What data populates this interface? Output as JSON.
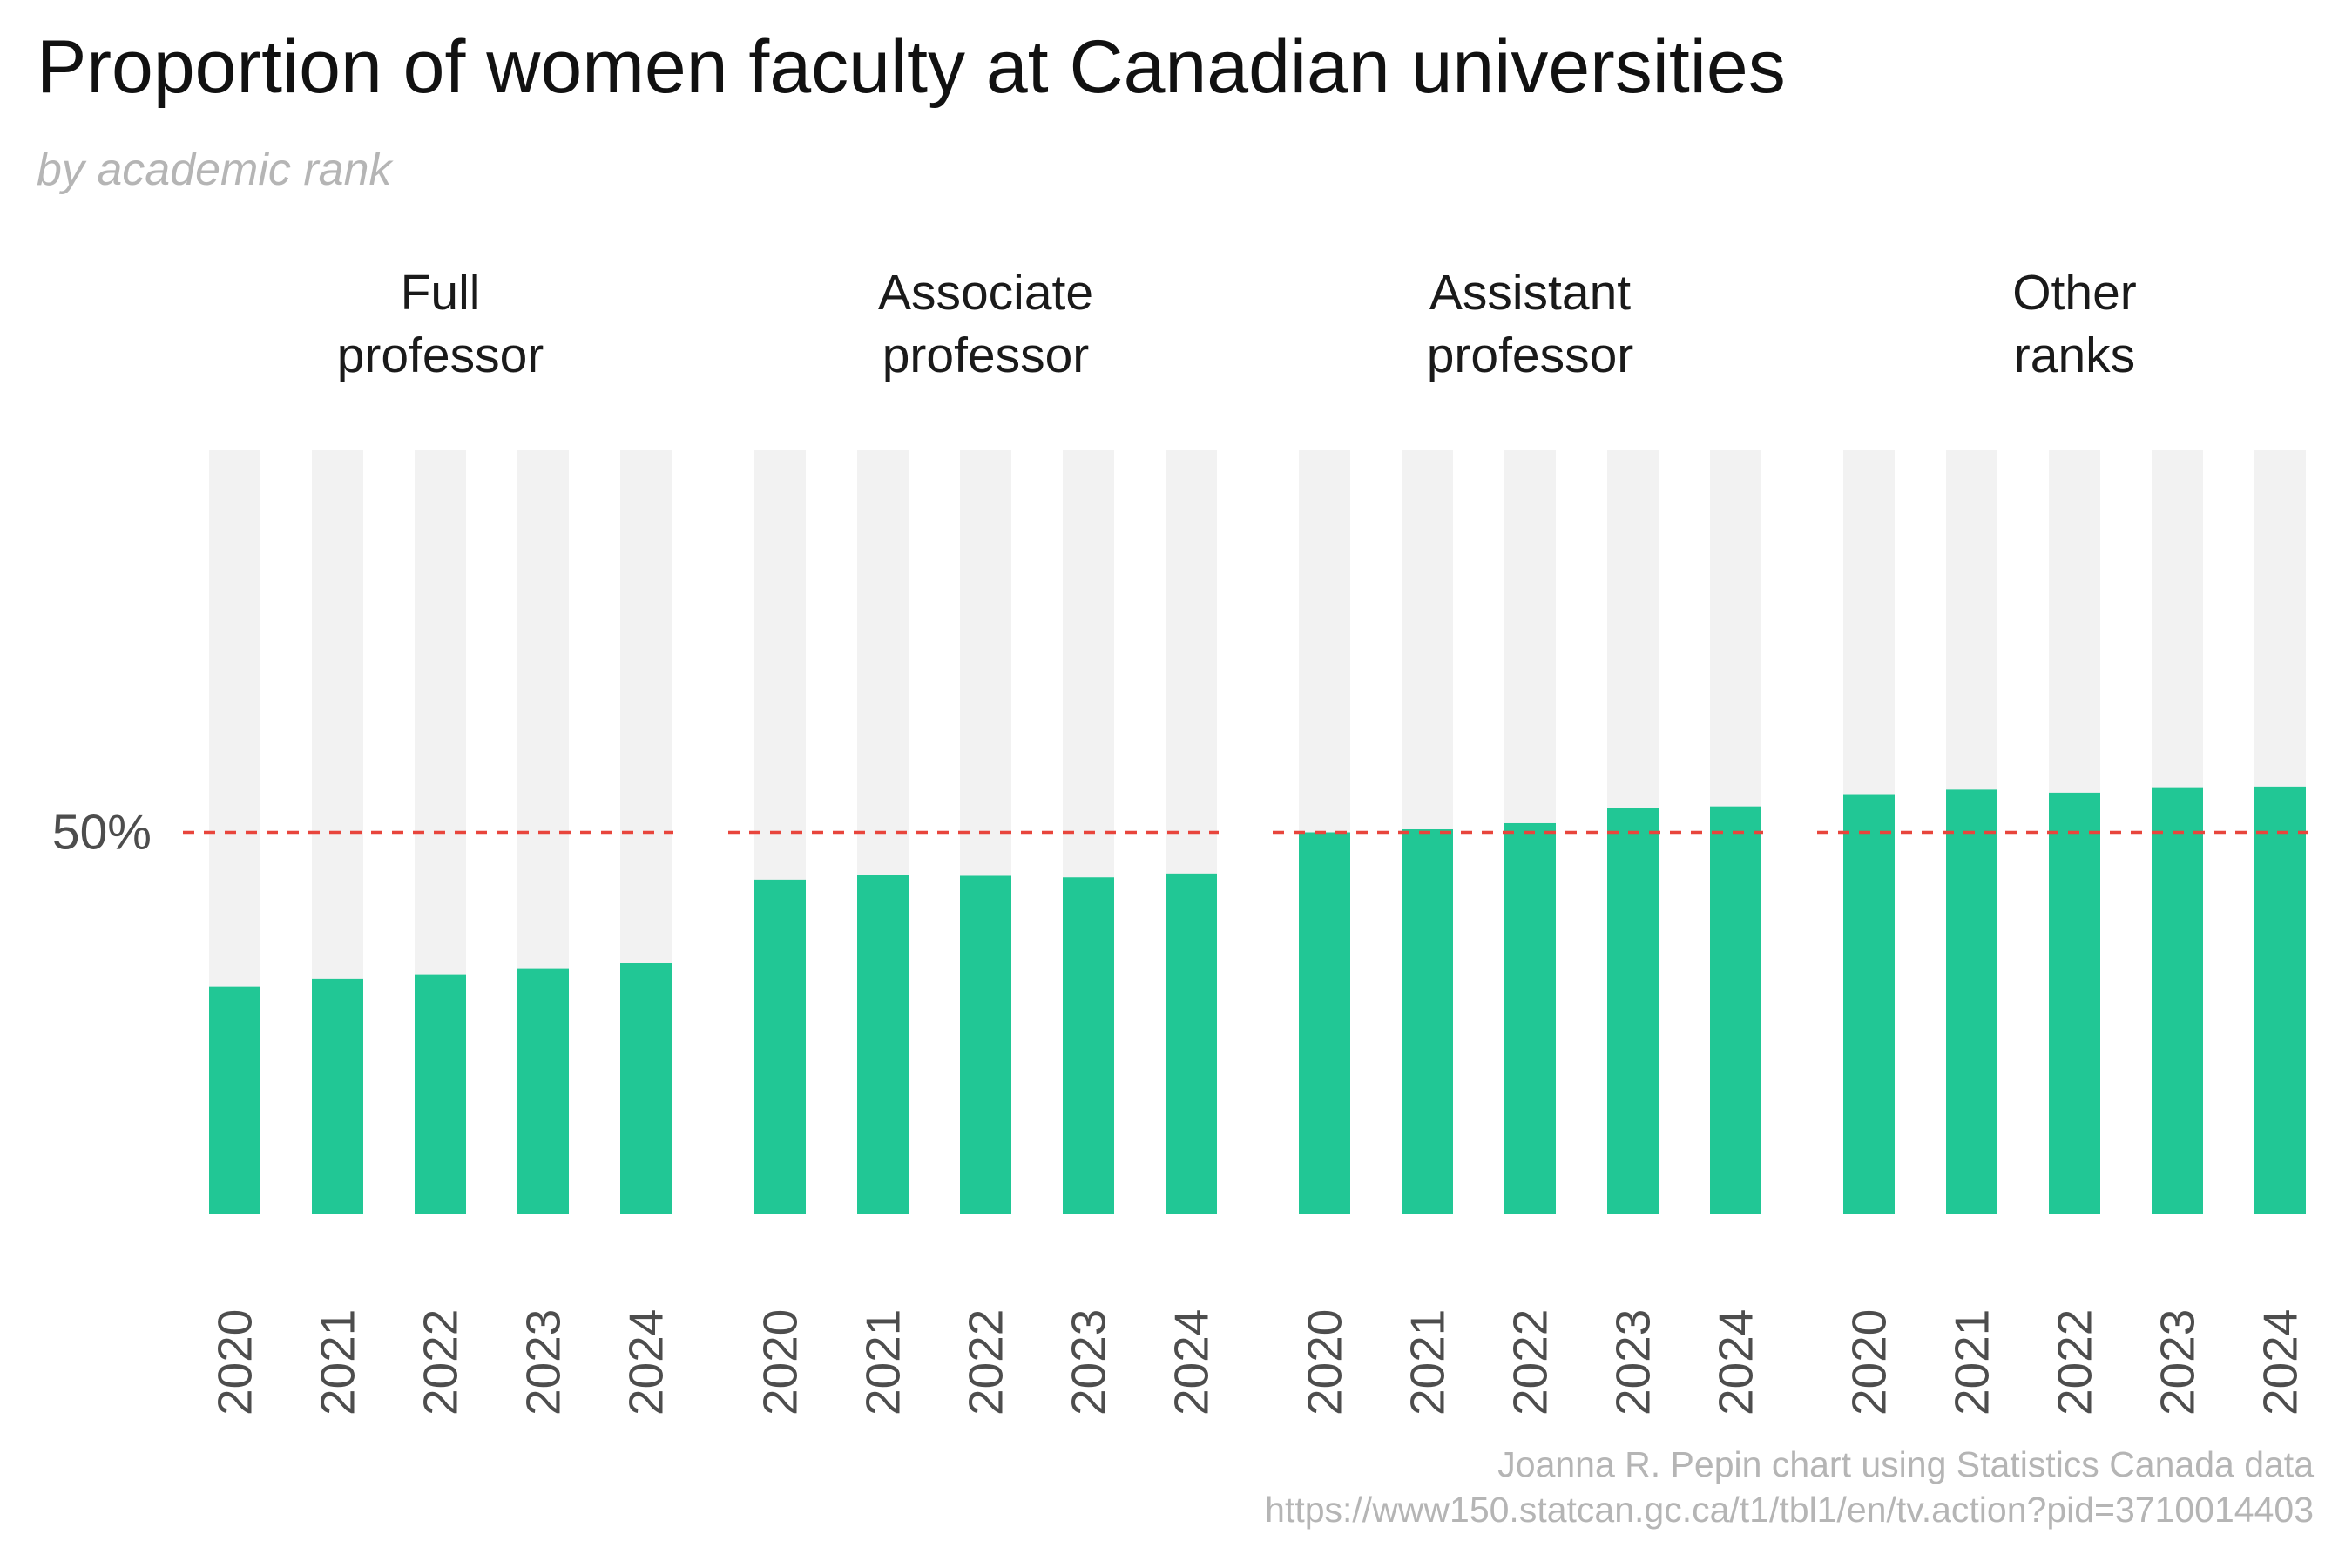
{
  "title": "Proportion of women faculty at Canadian universities",
  "subtitle": "by academic rank",
  "caption": {
    "line1": "Joanna R. Pepin chart using Statistics Canada data",
    "line2": "https://www150.statcan.gc.ca/t1/tbl1/en/tv.action?pid=3710014403"
  },
  "colors": {
    "bar": "#21c795",
    "background_bar": "#f2f2f2",
    "reference_line": "#e8453c",
    "axis_text": "#4d4d4d",
    "panel_label": "#1a1a1a"
  },
  "chart_data": {
    "type": "bar",
    "facets": [
      {
        "label": "Full\nprofessor"
      },
      {
        "label": "Associate\nprofessor"
      },
      {
        "label": "Assistant\nprofessor"
      },
      {
        "label": "Other\nranks"
      }
    ],
    "categories": [
      "2020",
      "2021",
      "2022",
      "2023",
      "2024"
    ],
    "series": [
      {
        "values": [
          29.8,
          30.8,
          31.4,
          32.2,
          32.9
        ]
      },
      {
        "values": [
          43.8,
          44.4,
          44.3,
          44.1,
          44.6
        ]
      },
      {
        "values": [
          50.0,
          50.4,
          51.2,
          53.2,
          53.4
        ]
      },
      {
        "values": [
          54.9,
          55.6,
          55.2,
          55.8,
          56.0
        ]
      }
    ],
    "ylim": [
      0,
      100
    ],
    "reference_line": {
      "value": 50,
      "label": "50%",
      "style": "dashed"
    },
    "background_bars_to": 100,
    "grid": false,
    "legend": "none"
  }
}
